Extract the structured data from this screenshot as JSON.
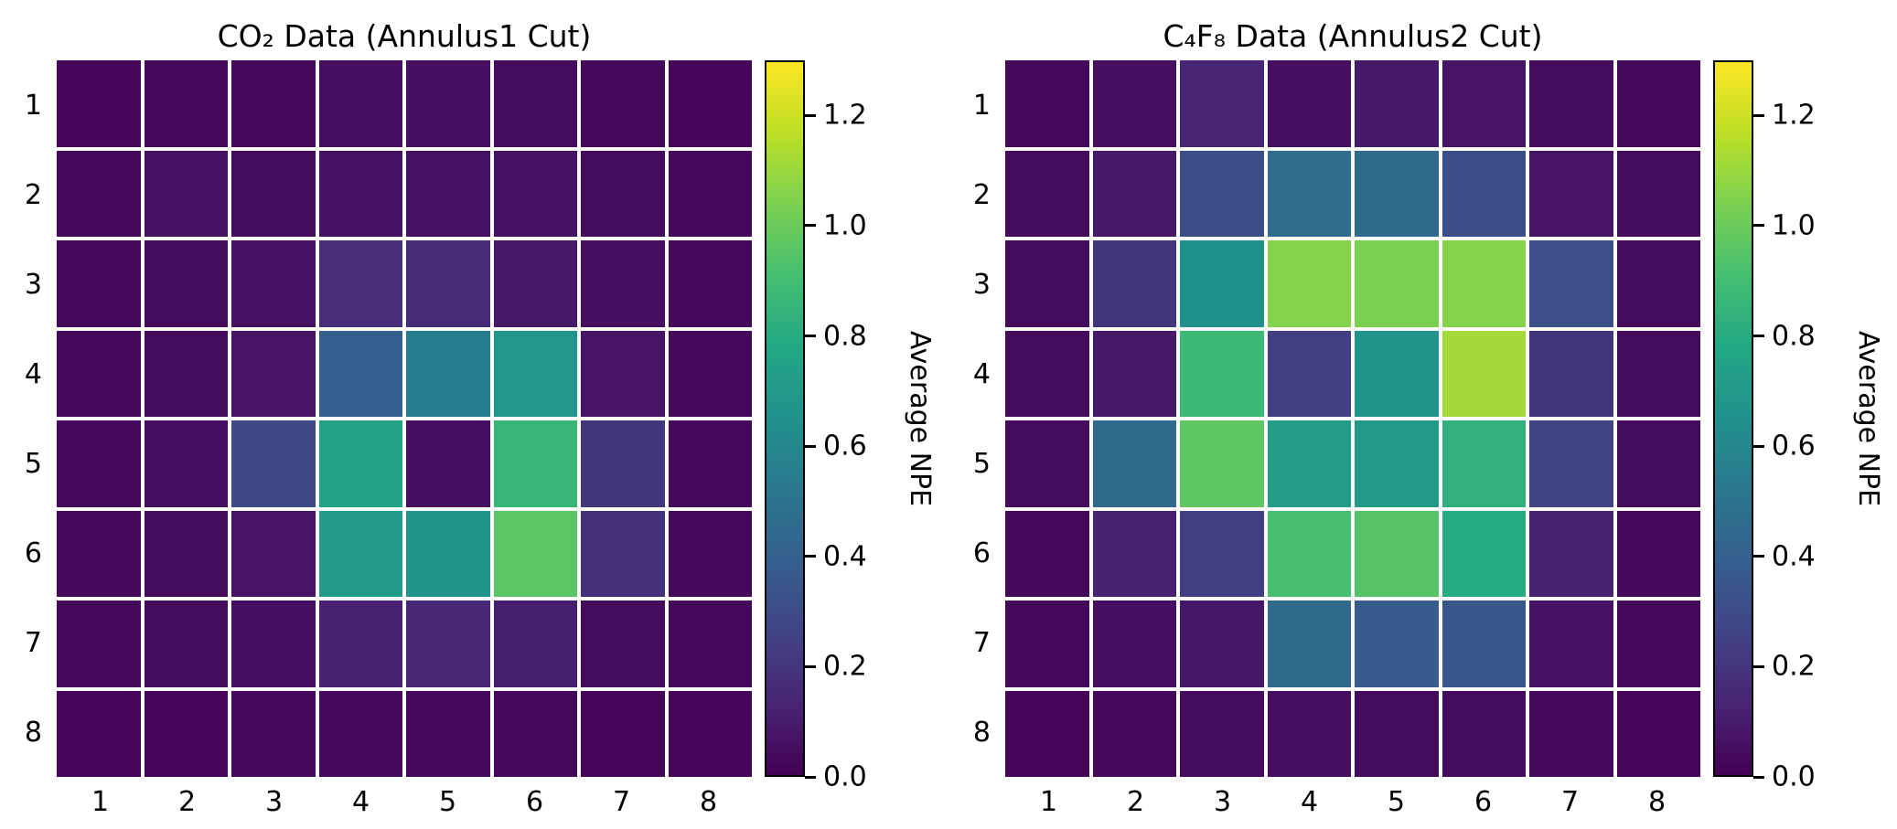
{
  "figure": {
    "background": "#ffffff",
    "colormap_name": "viridis"
  },
  "chart_data": [
    {
      "type": "heatmap",
      "title": "CO₂ Data (Annulus1 Cut)",
      "colorbar_label": "Average NPE",
      "colormap": "viridis",
      "vmin": 0.0,
      "vmax": 1.3,
      "colorbar_ticks": [
        0.0,
        0.2,
        0.4,
        0.6,
        0.8,
        1.0,
        1.2
      ],
      "colorbar_tick_labels": [
        "0.0",
        "0.2",
        "0.4",
        "0.6",
        "0.8",
        "1.0",
        "1.2"
      ],
      "rows": [
        "1",
        "2",
        "3",
        "4",
        "5",
        "6",
        "7",
        "8"
      ],
      "cols": [
        "1",
        "2",
        "3",
        "4",
        "5",
        "6",
        "7",
        "8"
      ],
      "values": [
        [
          0.02,
          0.03,
          0.03,
          0.05,
          0.05,
          0.04,
          0.03,
          0.02
        ],
        [
          0.03,
          0.06,
          0.04,
          0.06,
          0.06,
          0.06,
          0.04,
          0.03
        ],
        [
          0.03,
          0.04,
          0.06,
          0.17,
          0.16,
          0.09,
          0.05,
          0.03
        ],
        [
          0.03,
          0.04,
          0.07,
          0.39,
          0.55,
          0.68,
          0.07,
          0.03
        ],
        [
          0.03,
          0.05,
          0.28,
          0.75,
          0.05,
          0.86,
          0.2,
          0.03
        ],
        [
          0.03,
          0.04,
          0.07,
          0.7,
          0.66,
          0.96,
          0.18,
          0.03
        ],
        [
          0.03,
          0.04,
          0.05,
          0.12,
          0.15,
          0.11,
          0.04,
          0.03
        ],
        [
          0.02,
          0.02,
          0.03,
          0.03,
          0.03,
          0.03,
          0.02,
          0.02
        ]
      ]
    },
    {
      "type": "heatmap",
      "title": "C₄F₈ Data (Annulus2 Cut)",
      "colorbar_label": "Average NPE",
      "colormap": "viridis",
      "vmin": 0.0,
      "vmax": 1.3,
      "colorbar_ticks": [
        0.0,
        0.2,
        0.4,
        0.6,
        0.8,
        1.0,
        1.2
      ],
      "colorbar_tick_labels": [
        "0.0",
        "0.2",
        "0.4",
        "0.6",
        "0.8",
        "1.0",
        "1.2"
      ],
      "rows": [
        "1",
        "2",
        "3",
        "4",
        "5",
        "6",
        "7",
        "8"
      ],
      "cols": [
        "1",
        "2",
        "3",
        "4",
        "5",
        "6",
        "7",
        "8"
      ],
      "values": [
        [
          0.03,
          0.05,
          0.13,
          0.05,
          0.09,
          0.07,
          0.04,
          0.03
        ],
        [
          0.04,
          0.09,
          0.31,
          0.46,
          0.45,
          0.31,
          0.07,
          0.04
        ],
        [
          0.04,
          0.2,
          0.65,
          1.06,
          1.04,
          1.06,
          0.32,
          0.04
        ],
        [
          0.04,
          0.09,
          0.88,
          0.24,
          0.66,
          1.12,
          0.2,
          0.04
        ],
        [
          0.04,
          0.45,
          0.97,
          0.72,
          0.7,
          0.83,
          0.25,
          0.04
        ],
        [
          0.03,
          0.12,
          0.24,
          0.92,
          0.95,
          0.79,
          0.12,
          0.03
        ],
        [
          0.03,
          0.05,
          0.08,
          0.45,
          0.37,
          0.35,
          0.06,
          0.03
        ],
        [
          0.02,
          0.03,
          0.04,
          0.05,
          0.04,
          0.04,
          0.03,
          0.02
        ]
      ]
    }
  ]
}
